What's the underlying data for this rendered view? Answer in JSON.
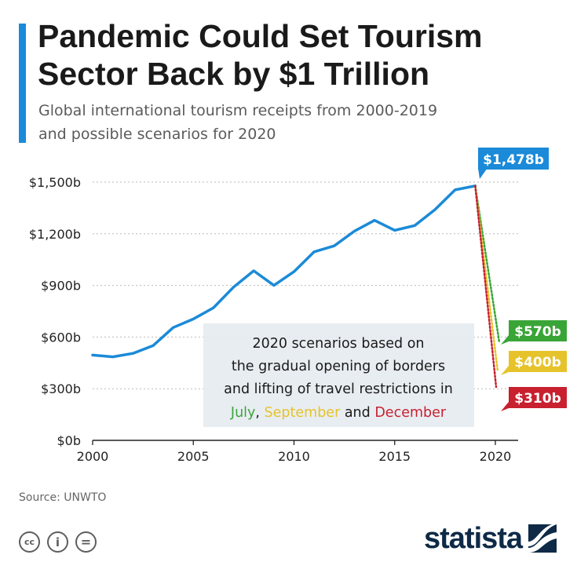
{
  "header": {
    "title_line1": "Pandemic Could Set Tourism",
    "title_line2": "Sector Back by $1 Trillion",
    "subtitle_line1": "Global international tourism receipts from 2000-2019",
    "subtitle_line2": "and possible scenarios for 2020"
  },
  "chart_data": {
    "type": "line",
    "x": [
      2000,
      2001,
      2002,
      2003,
      2004,
      2005,
      2006,
      2007,
      2008,
      2009,
      2010,
      2011,
      2012,
      2013,
      2014,
      2015,
      2016,
      2017,
      2018,
      2019
    ],
    "series": [
      {
        "name": "Global international tourism receipts",
        "color": "#1b8ad8",
        "values": [
          495,
          485,
          505,
          550,
          655,
          705,
          770,
          890,
          985,
          900,
          980,
          1095,
          1130,
          1215,
          1278,
          1220,
          1248,
          1340,
          1455,
          1478
        ]
      }
    ],
    "scenarios": [
      {
        "name": "July",
        "value": 570,
        "label": "$570b",
        "color": "#3aa537"
      },
      {
        "name": "September",
        "value": 400,
        "label": "$400b",
        "color": "#e6c32a"
      },
      {
        "name": "December",
        "value": 310,
        "label": "$310b",
        "color": "#c8202f"
      }
    ],
    "last_value_label": "$1,478b",
    "y_ticks": [
      0,
      300,
      600,
      900,
      1200,
      1500
    ],
    "y_tick_labels": [
      "$0b",
      "$300b",
      "$600b",
      "$900b",
      "$1,200b",
      "$1,500b"
    ],
    "x_ticks": [
      2000,
      2005,
      2010,
      2015,
      2020
    ],
    "x_tick_labels": [
      "2000",
      "2005",
      "2010",
      "2015",
      "2020"
    ],
    "xlim": [
      2000,
      2020
    ],
    "ylim": [
      0,
      1500
    ],
    "annotation": {
      "line1": "2020 scenarios based on",
      "line2": "the gradual opening of borders",
      "line3": "and lifting of travel restrictions in",
      "july": "July",
      "sep1": ", ",
      "september": "September",
      "sep2": " and ",
      "december": "December"
    }
  },
  "footer": {
    "source": "Source: UNWTO",
    "brand": "statista",
    "license_icons": [
      "cc-icon",
      "attribution-icon",
      "no-derivatives-icon"
    ],
    "cc_text": "cc",
    "attribution_text": "i",
    "nd_text": "="
  }
}
